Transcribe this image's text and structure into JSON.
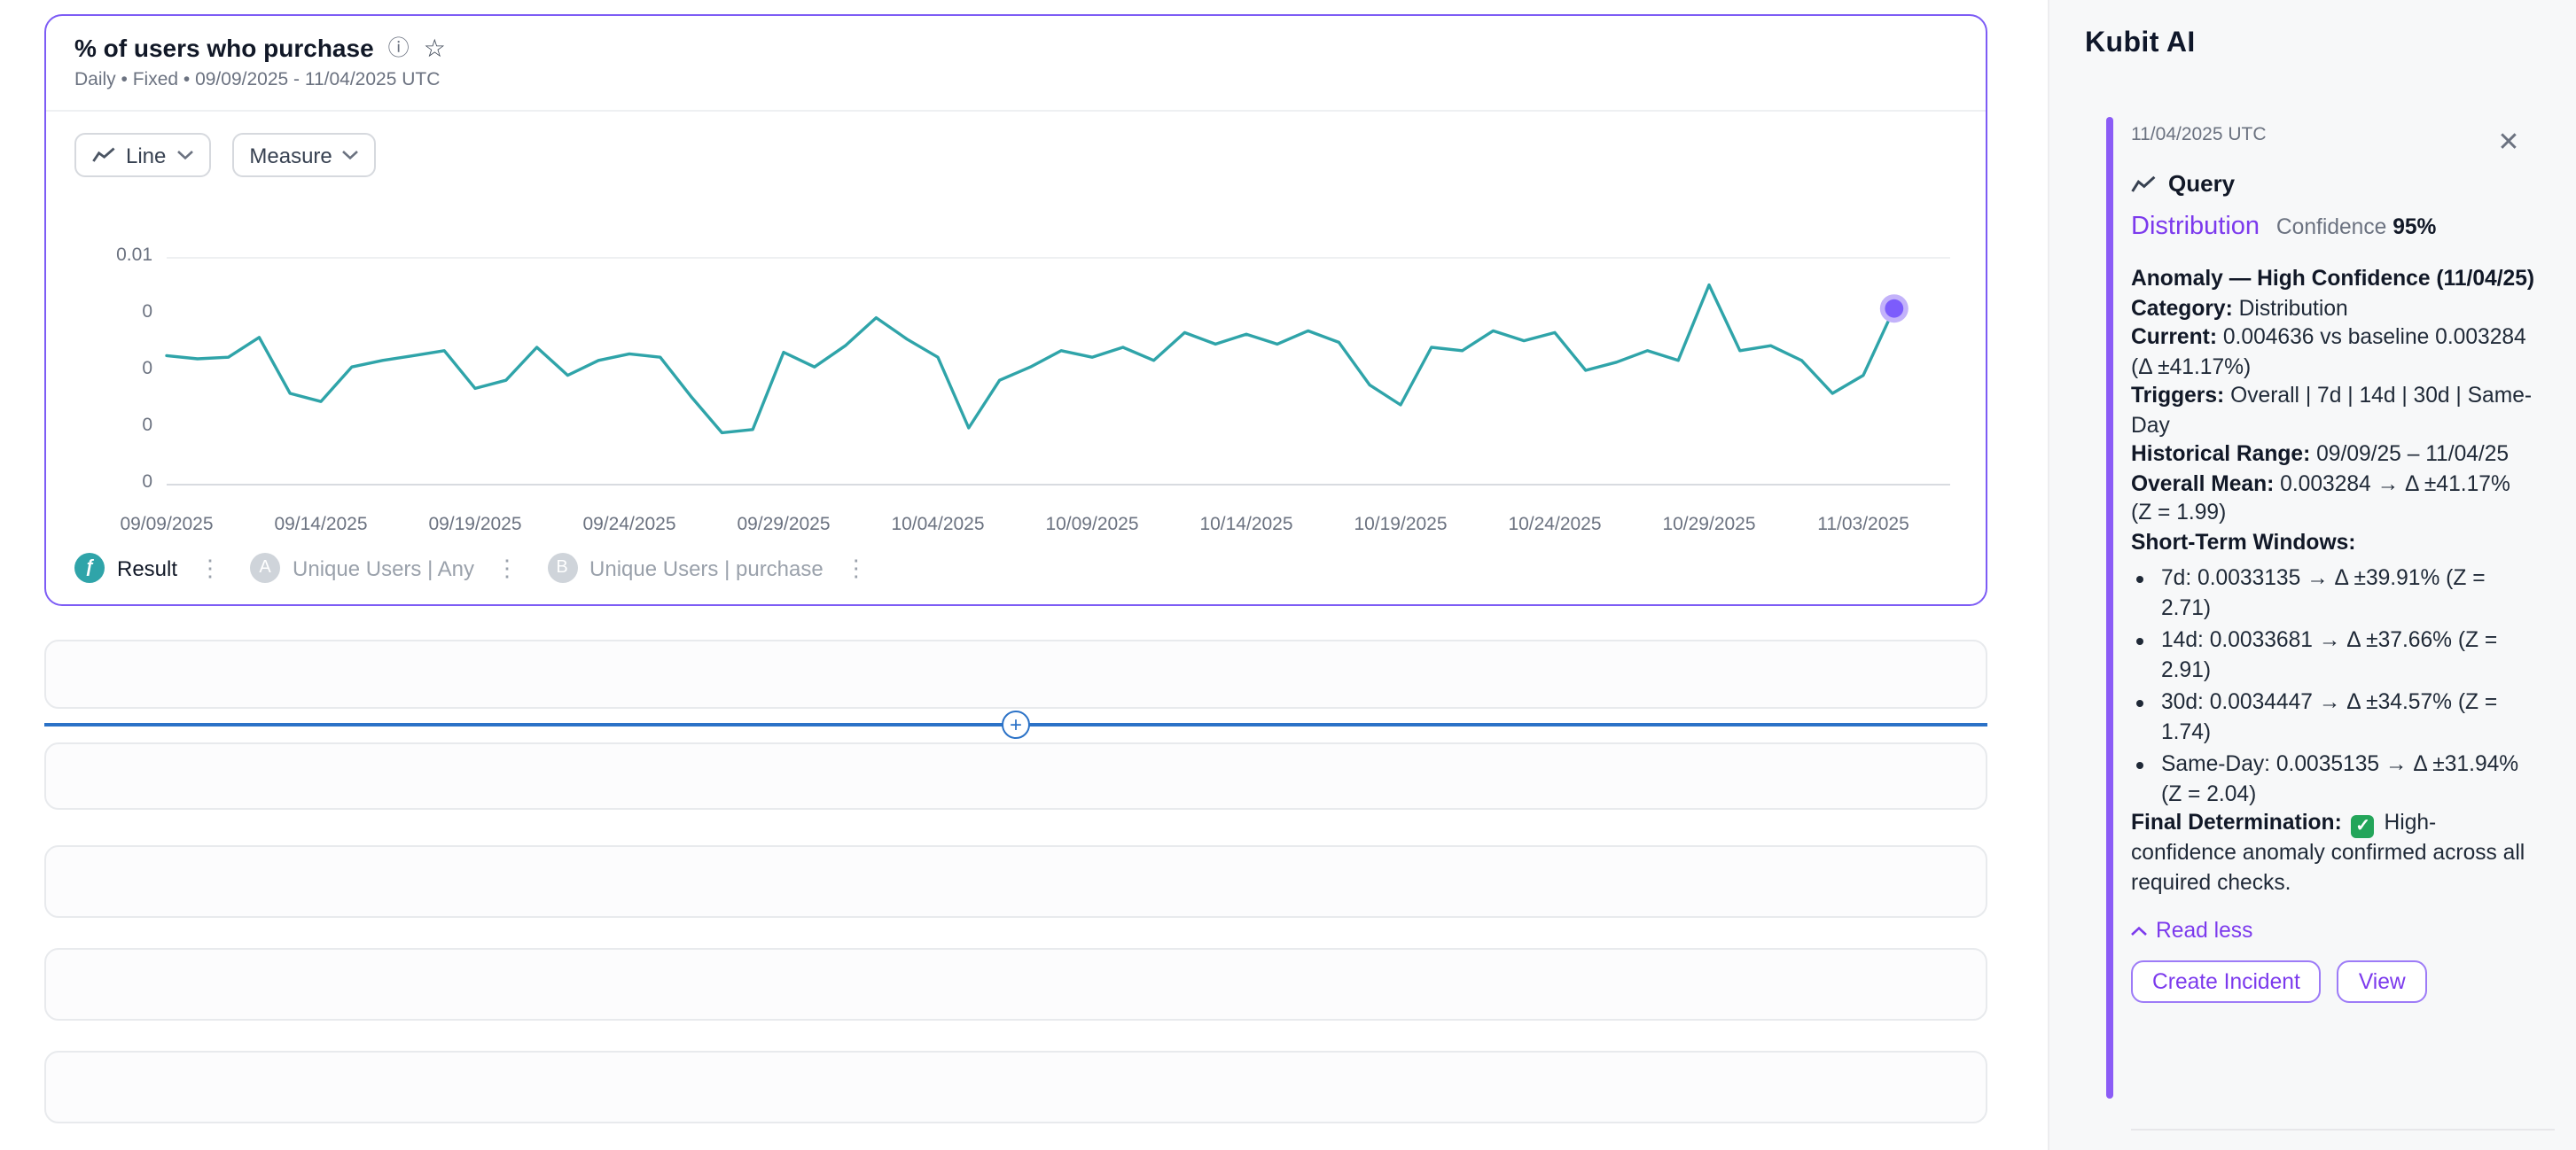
{
  "chart_card": {
    "title": "% of users who purchase",
    "subtitle": "Daily • Fixed • 09/09/2025 - 11/04/2025 UTC",
    "chart_type_label": "Line",
    "measure_label": "Measure",
    "legend": [
      {
        "badge": "ƒ",
        "label": "Result"
      },
      {
        "badge": "A",
        "label": "Unique Users | Any"
      },
      {
        "badge": "B",
        "label": "Unique Users | purchase"
      }
    ]
  },
  "chart_data": {
    "type": "line",
    "title": "% of users who purchase",
    "x": [
      "09/09/2025",
      "09/10/2025",
      "09/11/2025",
      "09/12/2025",
      "09/13/2025",
      "09/14/2025",
      "09/15/2025",
      "09/16/2025",
      "09/17/2025",
      "09/18/2025",
      "09/19/2025",
      "09/20/2025",
      "09/21/2025",
      "09/22/2025",
      "09/23/2025",
      "09/24/2025",
      "09/25/2025",
      "09/26/2025",
      "09/27/2025",
      "09/28/2025",
      "09/29/2025",
      "09/30/2025",
      "10/01/2025",
      "10/02/2025",
      "10/03/2025",
      "10/04/2025",
      "10/05/2025",
      "10/06/2025",
      "10/07/2025",
      "10/08/2025",
      "10/09/2025",
      "10/10/2025",
      "10/11/2025",
      "10/12/2025",
      "10/13/2025",
      "10/14/2025",
      "10/15/2025",
      "10/16/2025",
      "10/17/2025",
      "10/18/2025",
      "10/19/2025",
      "10/20/2025",
      "10/21/2025",
      "10/22/2025",
      "10/23/2025",
      "10/24/2025",
      "10/25/2025",
      "10/26/2025",
      "10/27/2025",
      "10/28/2025",
      "10/29/2025",
      "10/30/2025",
      "10/31/2025",
      "11/01/2025",
      "11/02/2025",
      "11/03/2025",
      "11/04/2025"
    ],
    "series": [
      {
        "name": "Result",
        "values": [
          0.003391,
          0.003304,
          0.003348,
          0.00387,
          0.002391,
          0.002174,
          0.003087,
          0.003261,
          0.003391,
          0.003522,
          0.002522,
          0.002739,
          0.003609,
          0.00287,
          0.003261,
          0.003435,
          0.003348,
          0.002304,
          0.001348,
          0.001435,
          0.003478,
          0.003087,
          0.003652,
          0.004391,
          0.003826,
          0.003348,
          0.001478,
          0.002739,
          0.003087,
          0.003522,
          0.003348,
          0.003609,
          0.003261,
          0.004,
          0.003696,
          0.003957,
          0.003696,
          0.004043,
          0.003739,
          0.002609,
          0.002087,
          0.003609,
          0.003522,
          0.004043,
          0.003783,
          0.004,
          0.003,
          0.003217,
          0.003522,
          0.003261,
          0.005261,
          0.003522,
          0.003652,
          0.003261,
          0.002391,
          0.00287,
          0.004636
        ]
      }
    ],
    "x_tick_labels": [
      "09/09/2025",
      "09/14/2025",
      "09/19/2025",
      "09/24/2025",
      "09/29/2025",
      "10/04/2025",
      "10/09/2025",
      "10/14/2025",
      "10/19/2025",
      "10/24/2025",
      "10/29/2025",
      "11/03/2025"
    ],
    "y_tick_labels": [
      "0.01",
      "0",
      "0",
      "0",
      "0"
    ],
    "ylim": [
      0,
      0.006
    ],
    "grid": "top-line-only",
    "legend_position": "bottom",
    "line_color": "#2FA4A9",
    "anomaly_point": {
      "x": "11/04/2025",
      "value": 0.004636,
      "color": "#7C5CFC",
      "halo_color": "#C3B2FA"
    }
  },
  "sidebar": {
    "app_title": "Kubit AI",
    "panel": {
      "timestamp": "11/04/2025 UTC",
      "close_glyph": "✕",
      "query_label": "Query",
      "metric_name": "Distribution",
      "confidence_label": "Confidence",
      "confidence_value": "95%",
      "summary_title": "Anomaly — High Confidence (11/04/25)",
      "fields": [
        {
          "label": "Category:",
          "value": "Distribution"
        },
        {
          "label": "Current:",
          "value": "0.004636 vs baseline 0.003284 (Δ ±41.17%)"
        },
        {
          "label": "Triggers:",
          "value": "Overall | 7d | 14d | 30d | Same-Day"
        }
      ],
      "history": [
        {
          "label": "Historical Range:",
          "value": "09/09/25 – 11/04/25"
        },
        {
          "label": "Overall Mean:",
          "value": "0.003284 → Δ ±41.17% (Z = 1.99)"
        }
      ],
      "short_term_title": "Short-Term Windows:",
      "bullets": [
        "7d: 0.0033135 → Δ ±39.91% (Z = 2.71)",
        "14d: 0.0033681 → Δ ±37.66% (Z = 2.91)",
        "30d: 0.0034447 → Δ ±34.57% (Z = 1.74)",
        "Same-Day: 0.0035135 → Δ ±31.94% (Z = 2.04)"
      ],
      "final_label": "Final Determination:",
      "final_icon": "✓",
      "final_value": "High-confidence anomaly confirmed across all required checks.",
      "read_less_label": "Read less",
      "create_incident_label": "Create Incident",
      "view_label": "View"
    }
  },
  "insert_plus_glyph": "+"
}
